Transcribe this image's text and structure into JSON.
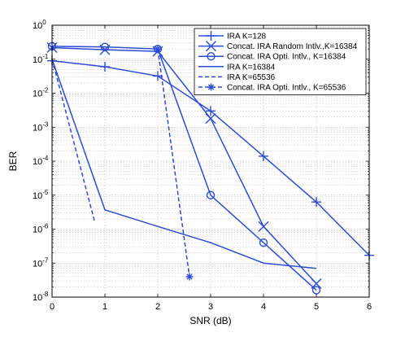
{
  "chart_data": {
    "type": "line",
    "title": "",
    "xlabel": "SNR  (dB)",
    "ylabel": "BER",
    "xlim": [
      0,
      6
    ],
    "ylim_exponent": [
      -8,
      0
    ],
    "yscale": "log",
    "grid": true,
    "legend_position": "top-right",
    "x_ticks": [
      "0",
      "1",
      "2",
      "3",
      "4",
      "5",
      "6"
    ],
    "y_tick_base": "10",
    "y_tick_exponents": [
      "-8",
      "-7",
      "-6",
      "-5",
      "-4",
      "-3",
      "-2",
      "-1",
      "0"
    ],
    "line_color": "#2b4cd9",
    "series": [
      {
        "name": "IRA K=128",
        "marker": "plus",
        "dash": "solid",
        "points": [
          [
            0,
            0.09
          ],
          [
            1,
            0.06
          ],
          [
            2,
            0.032
          ],
          [
            3,
            0.003
          ],
          [
            4,
            0.00014
          ],
          [
            5,
            6.3e-06
          ],
          [
            6,
            1.7e-07
          ]
        ]
      },
      {
        "name": "Concat. IRA Random Intlv.,K=16384",
        "marker": "x",
        "dash": "solid",
        "points": [
          [
            0,
            0.22
          ],
          [
            1,
            0.19
          ],
          [
            2,
            0.17
          ],
          [
            3,
            0.0018
          ],
          [
            4,
            1.2e-06
          ],
          [
            5,
            2.5e-08
          ]
        ]
      },
      {
        "name": "Concat. IRA Opti. Intlv., K=16384",
        "marker": "circle",
        "dash": "solid",
        "points": [
          [
            0,
            0.24
          ],
          [
            1,
            0.23
          ],
          [
            2,
            0.2
          ],
          [
            3,
            1e-05
          ],
          [
            4,
            4e-07
          ],
          [
            5,
            1.6e-08
          ]
        ]
      },
      {
        "name": "IRA K=16384",
        "marker": "none",
        "dash": "solid",
        "points": [
          [
            0,
            0.1
          ],
          [
            1,
            3.7e-06
          ],
          [
            2,
            1.2e-06
          ],
          [
            3,
            4e-07
          ],
          [
            4,
            1e-07
          ],
          [
            5,
            7e-08
          ]
        ]
      },
      {
        "name": "IRA K=65536",
        "marker": "none",
        "dash": "dashed",
        "points": [
          [
            0,
            0.1
          ],
          [
            0.8,
            1.8e-06
          ]
        ]
      },
      {
        "name": "Concat. IRA Opti. Intlv., K=65536",
        "marker": "star",
        "dash": "dashed",
        "points": [
          [
            2,
            0.2
          ],
          [
            2.6,
            4e-08
          ]
        ]
      }
    ]
  }
}
